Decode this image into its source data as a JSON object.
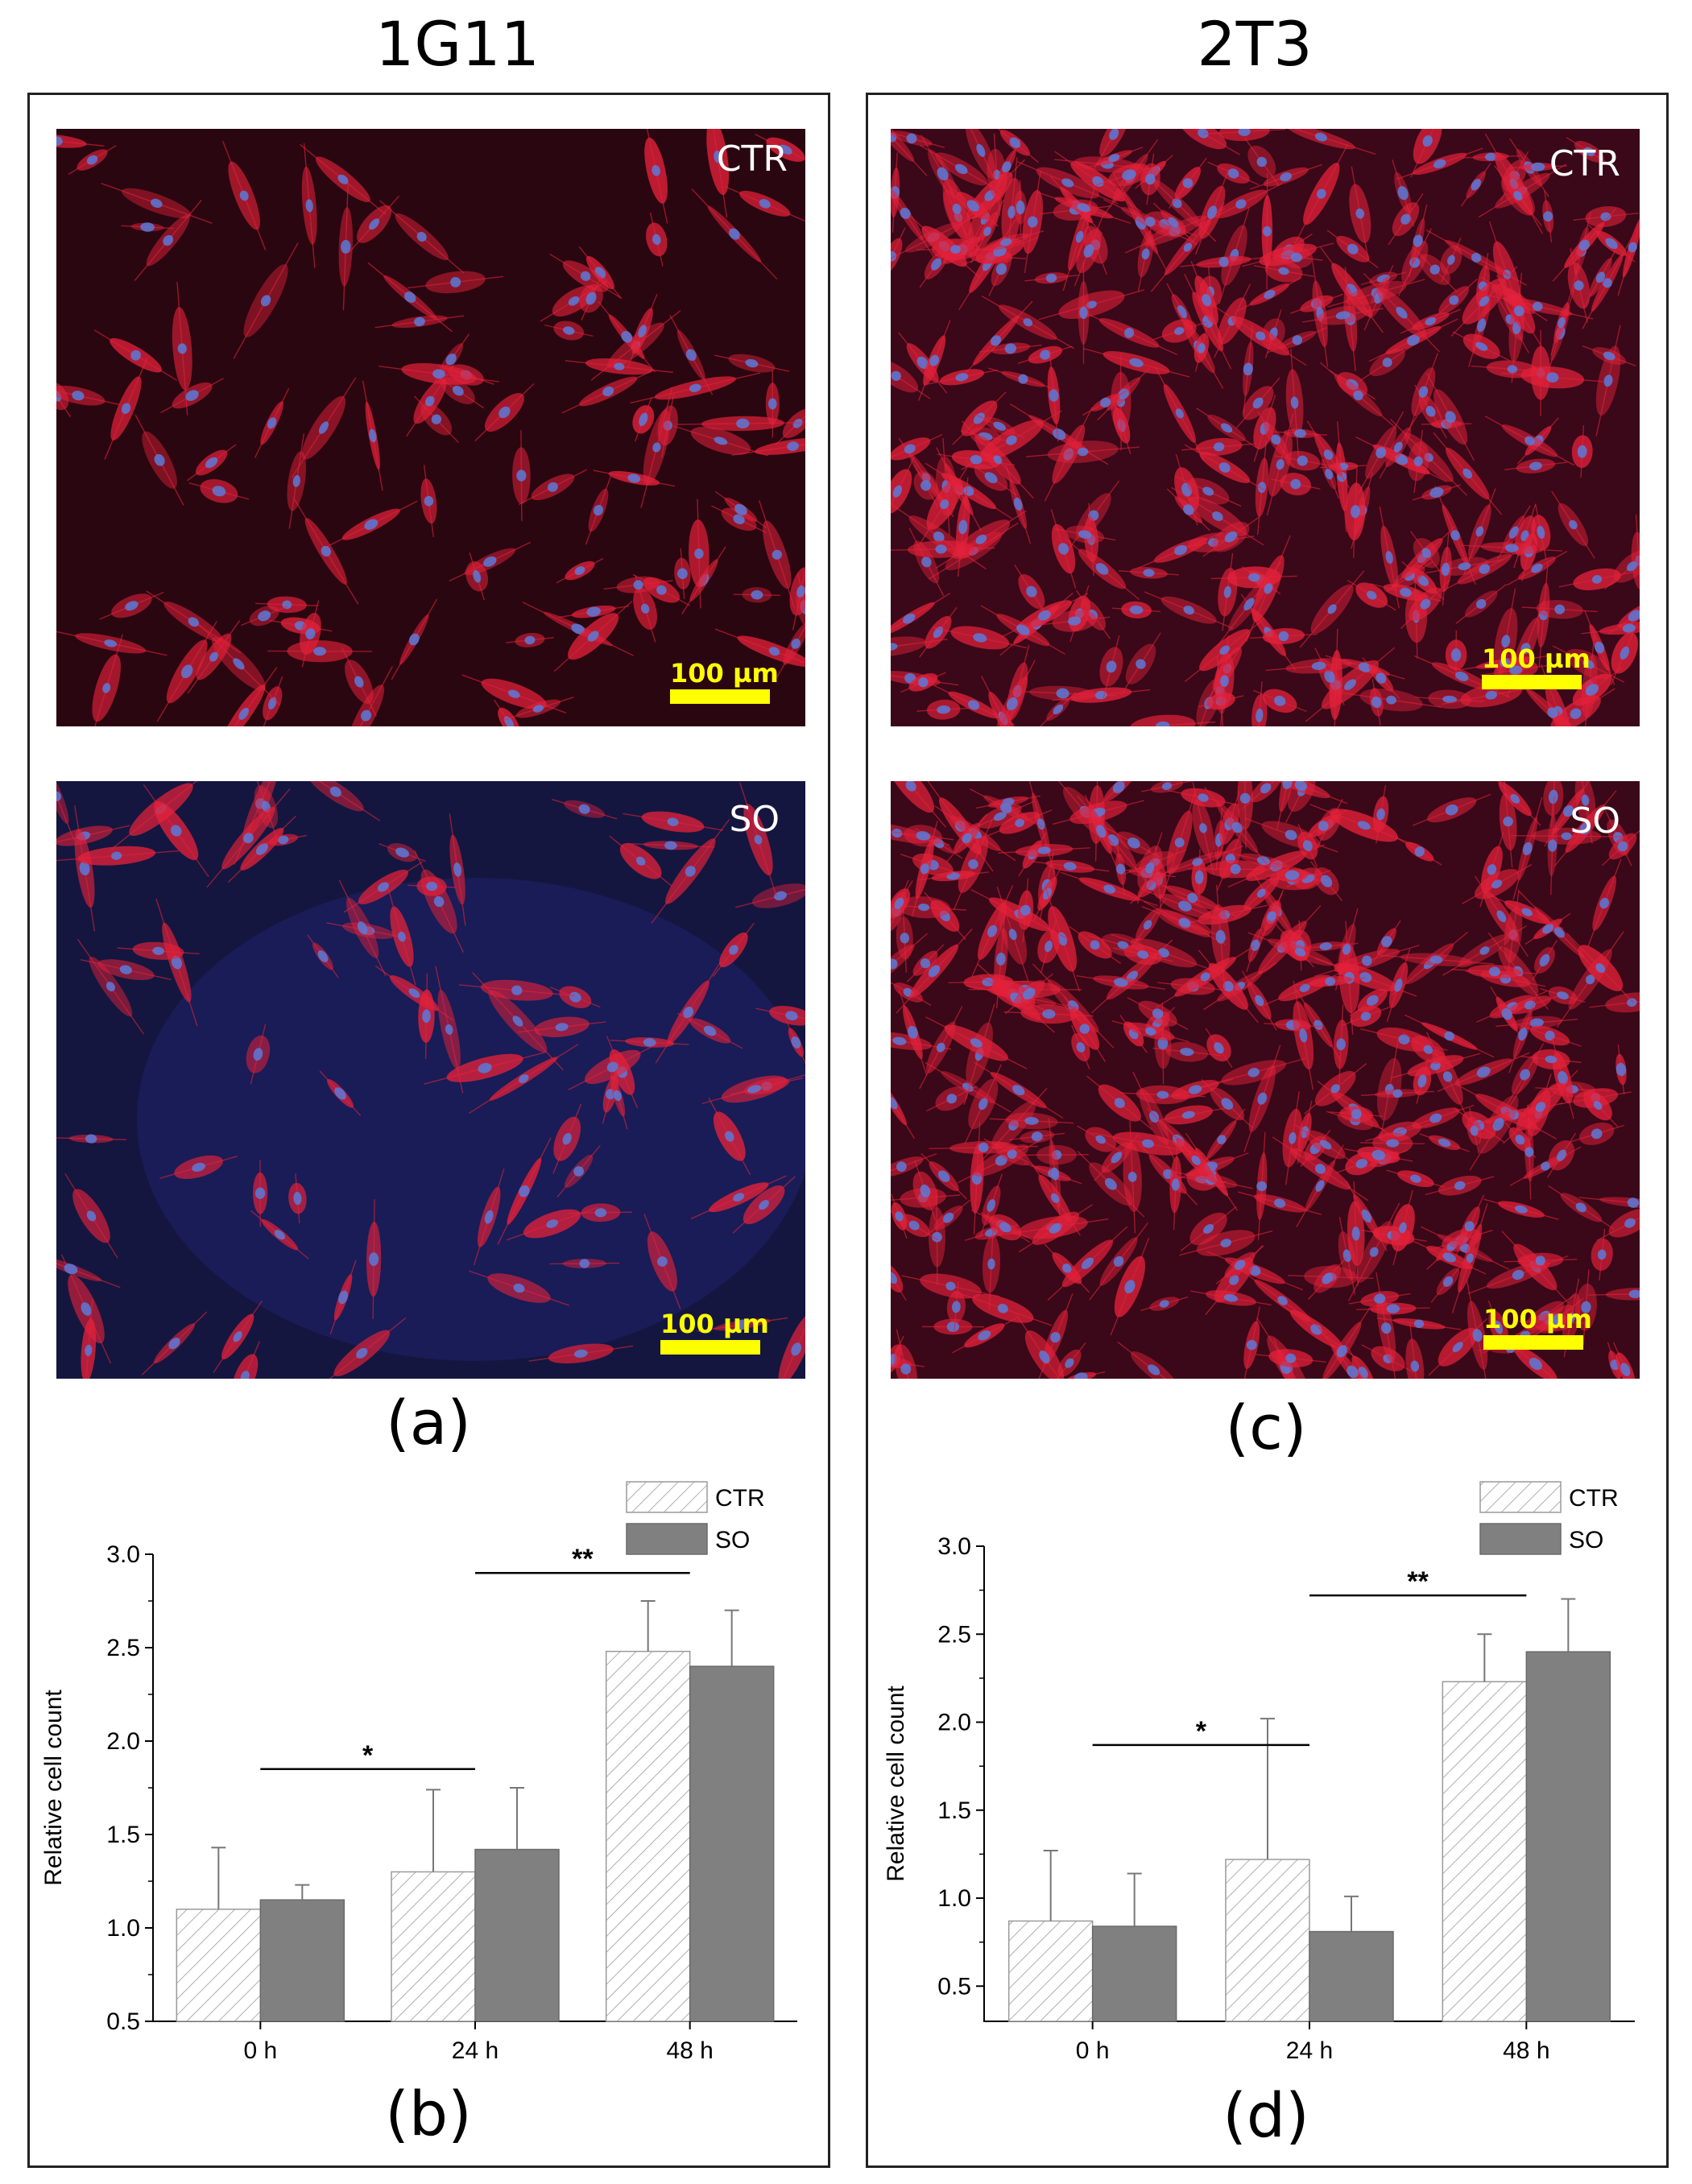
{
  "columns": [
    {
      "title": "1G11",
      "images": [
        {
          "tag": "CTR",
          "scale": "100 µm"
        },
        {
          "tag": "SO",
          "scale": "100 µm"
        }
      ],
      "image_label": "(a)",
      "chart_label": "(b)"
    },
    {
      "title": "2T3",
      "images": [
        {
          "tag": "CTR",
          "scale": "100 µm"
        },
        {
          "tag": "SO",
          "scale": "100 µm"
        }
      ],
      "image_label": "(c)",
      "chart_label": "(d)"
    }
  ],
  "colors": {
    "ctr_fill": "#ffffff",
    "ctr_hatch": "#9a9a9a",
    "so_fill": "#808080",
    "cell": "#e3213a",
    "nucleus": "#5b7ad8"
  },
  "chart_data": [
    {
      "type": "bar",
      "categories": [
        "0 h",
        "24 h",
        "48 h"
      ],
      "series": [
        {
          "name": "CTR",
          "values": [
            1.1,
            1.3,
            2.48
          ],
          "errors": [
            0.33,
            0.44,
            0.27
          ]
        },
        {
          "name": "SO",
          "values": [
            1.15,
            1.42,
            2.4
          ],
          "errors": [
            0.08,
            0.33,
            0.3
          ]
        }
      ],
      "ylabel": "Relative cell count",
      "ylim": [
        0.5,
        3.0
      ],
      "yticks": [
        "0.5",
        "1.0",
        "1.5",
        "2.0",
        "2.5",
        "3.0"
      ],
      "legend_position": "top-right",
      "significance": [
        {
          "from": "0 h",
          "to": "24 h",
          "label": "*",
          "y": 1.85
        },
        {
          "from": "24 h",
          "to": "48 h",
          "label": "**",
          "y": 2.9
        }
      ]
    },
    {
      "type": "bar",
      "categories": [
        "0 h",
        "24 h",
        "48 h"
      ],
      "series": [
        {
          "name": "CTR",
          "values": [
            0.87,
            1.22,
            2.23
          ],
          "errors": [
            0.4,
            0.8,
            0.27
          ]
        },
        {
          "name": "SO",
          "values": [
            0.84,
            0.81,
            2.4
          ],
          "errors": [
            0.3,
            0.2,
            0.3
          ]
        }
      ],
      "ylabel": "Relative cell count",
      "ylim": [
        0.3,
        3.0
      ],
      "yticks": [
        "0.5",
        "1.0",
        "1.5",
        "2.0",
        "2.5",
        "3.0"
      ],
      "legend_position": "top-right",
      "significance": [
        {
          "from": "0 h",
          "to": "24 h",
          "label": "*",
          "y": 1.87
        },
        {
          "from": "24 h",
          "to": "48 h",
          "label": "**",
          "y": 2.72
        }
      ]
    }
  ]
}
